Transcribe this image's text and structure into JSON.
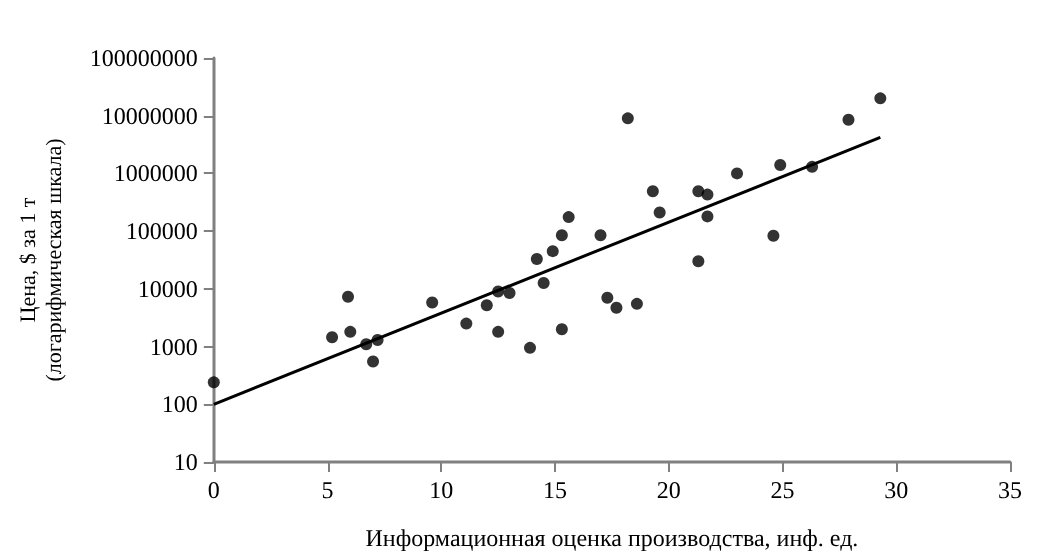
{
  "chart_data": {
    "type": "scatter",
    "xlabel": "Информационная оценка производства, инф. ед.",
    "ylabel": "Цена, $ за 1 т\n(логарифмическая шкала)",
    "log": "y",
    "grid": false,
    "marker": "circle",
    "xlim": [
      0,
      35
    ],
    "xticks": [
      0,
      5,
      10,
      15,
      20,
      25,
      30,
      35
    ],
    "ylim": [
      10,
      100000000
    ],
    "yticks": [
      10,
      100,
      1000,
      10000,
      100000,
      1000000,
      10000000,
      100000000
    ],
    "series": [
      {
        "color": "#000000",
        "x": [
          0,
          5.2,
          5.9,
          6.0,
          6.7,
          7.0,
          7.2,
          9.6,
          11.1,
          12.0,
          12.5,
          12.5,
          13.0,
          13.9,
          14.2,
          14.5,
          14.9,
          15.3,
          15.3,
          15.6,
          17.0,
          17.3,
          17.7,
          18.2,
          18.6,
          19.3,
          19.6,
          21.3,
          21.3,
          21.7,
          21.7,
          23.0,
          24.6,
          24.9,
          26.3,
          27.9,
          29.3
        ],
        "values": [
          240,
          1450,
          7300,
          1800,
          1100,
          550,
          1300,
          5800,
          2500,
          5200,
          1800,
          9000,
          8500,
          950,
          33000,
          12600,
          45000,
          85000,
          2000,
          175000,
          85000,
          7000,
          4700,
          9000000,
          5500,
          490000,
          210000,
          490000,
          30000,
          430000,
          180000,
          1000000,
          83000,
          1400000,
          1300000,
          8500000,
          20000000
        ]
      },
      {
        "type": "line",
        "color": "#000000",
        "marker": "none",
        "line_style": "solid",
        "x": [
          0,
          29.3
        ],
        "values": [
          100,
          4200000
        ]
      }
    ]
  }
}
